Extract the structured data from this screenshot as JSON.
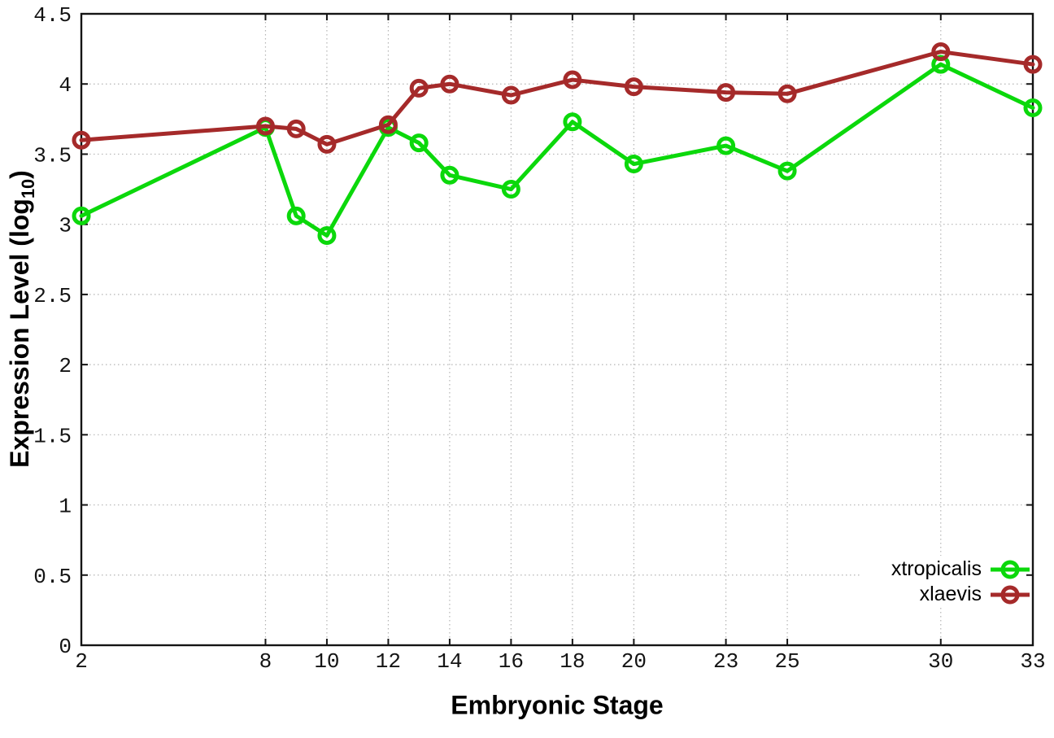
{
  "chart_data": {
    "type": "line",
    "title": "",
    "xlabel": "Embryonic Stage",
    "ylabel": "Expression Level (log10)",
    "ylabel_pre": "Expression Level (log",
    "ylabel_sub": "10",
    "ylabel_post": ")",
    "xlim": [
      2,
      33
    ],
    "ylim": [
      0,
      4.5
    ],
    "grid": true,
    "legend_position": "bottom-right",
    "x": [
      2,
      8,
      9,
      10,
      12,
      13,
      14,
      16,
      18,
      20,
      23,
      25,
      30,
      33
    ],
    "xticks": [
      2,
      8,
      10,
      12,
      14,
      16,
      18,
      20,
      23,
      25,
      30,
      33
    ],
    "xtick_labels": [
      "2",
      "8",
      "10",
      "12",
      "14",
      "16",
      "18",
      "20",
      "23",
      "25",
      "30",
      "33"
    ],
    "yticks": [
      0,
      0.5,
      1,
      1.5,
      2,
      2.5,
      3,
      3.5,
      4,
      4.5
    ],
    "ytick_labels": [
      "0",
      "0.5",
      "1",
      "1.5",
      "2",
      "2.5",
      "3",
      "3.5",
      "4",
      "4.5"
    ],
    "series": [
      {
        "name": "xtropicalis",
        "color": "#0bd80b",
        "values": [
          3.06,
          3.69,
          3.06,
          2.92,
          3.69,
          3.58,
          3.35,
          3.25,
          3.73,
          3.43,
          3.56,
          3.38,
          4.14,
          3.83
        ]
      },
      {
        "name": "xlaevis",
        "color": "#a52a2a",
        "values": [
          3.6,
          3.7,
          3.68,
          3.57,
          3.71,
          3.97,
          4.0,
          3.92,
          4.03,
          3.98,
          3.94,
          3.93,
          4.23,
          4.14
        ]
      }
    ],
    "style": {
      "axis_color": "#141414",
      "grid_color": "#b4b4b4",
      "background": "#ffffff",
      "line_width": 5,
      "marker": "open-circle",
      "marker_radius": 9
    }
  }
}
